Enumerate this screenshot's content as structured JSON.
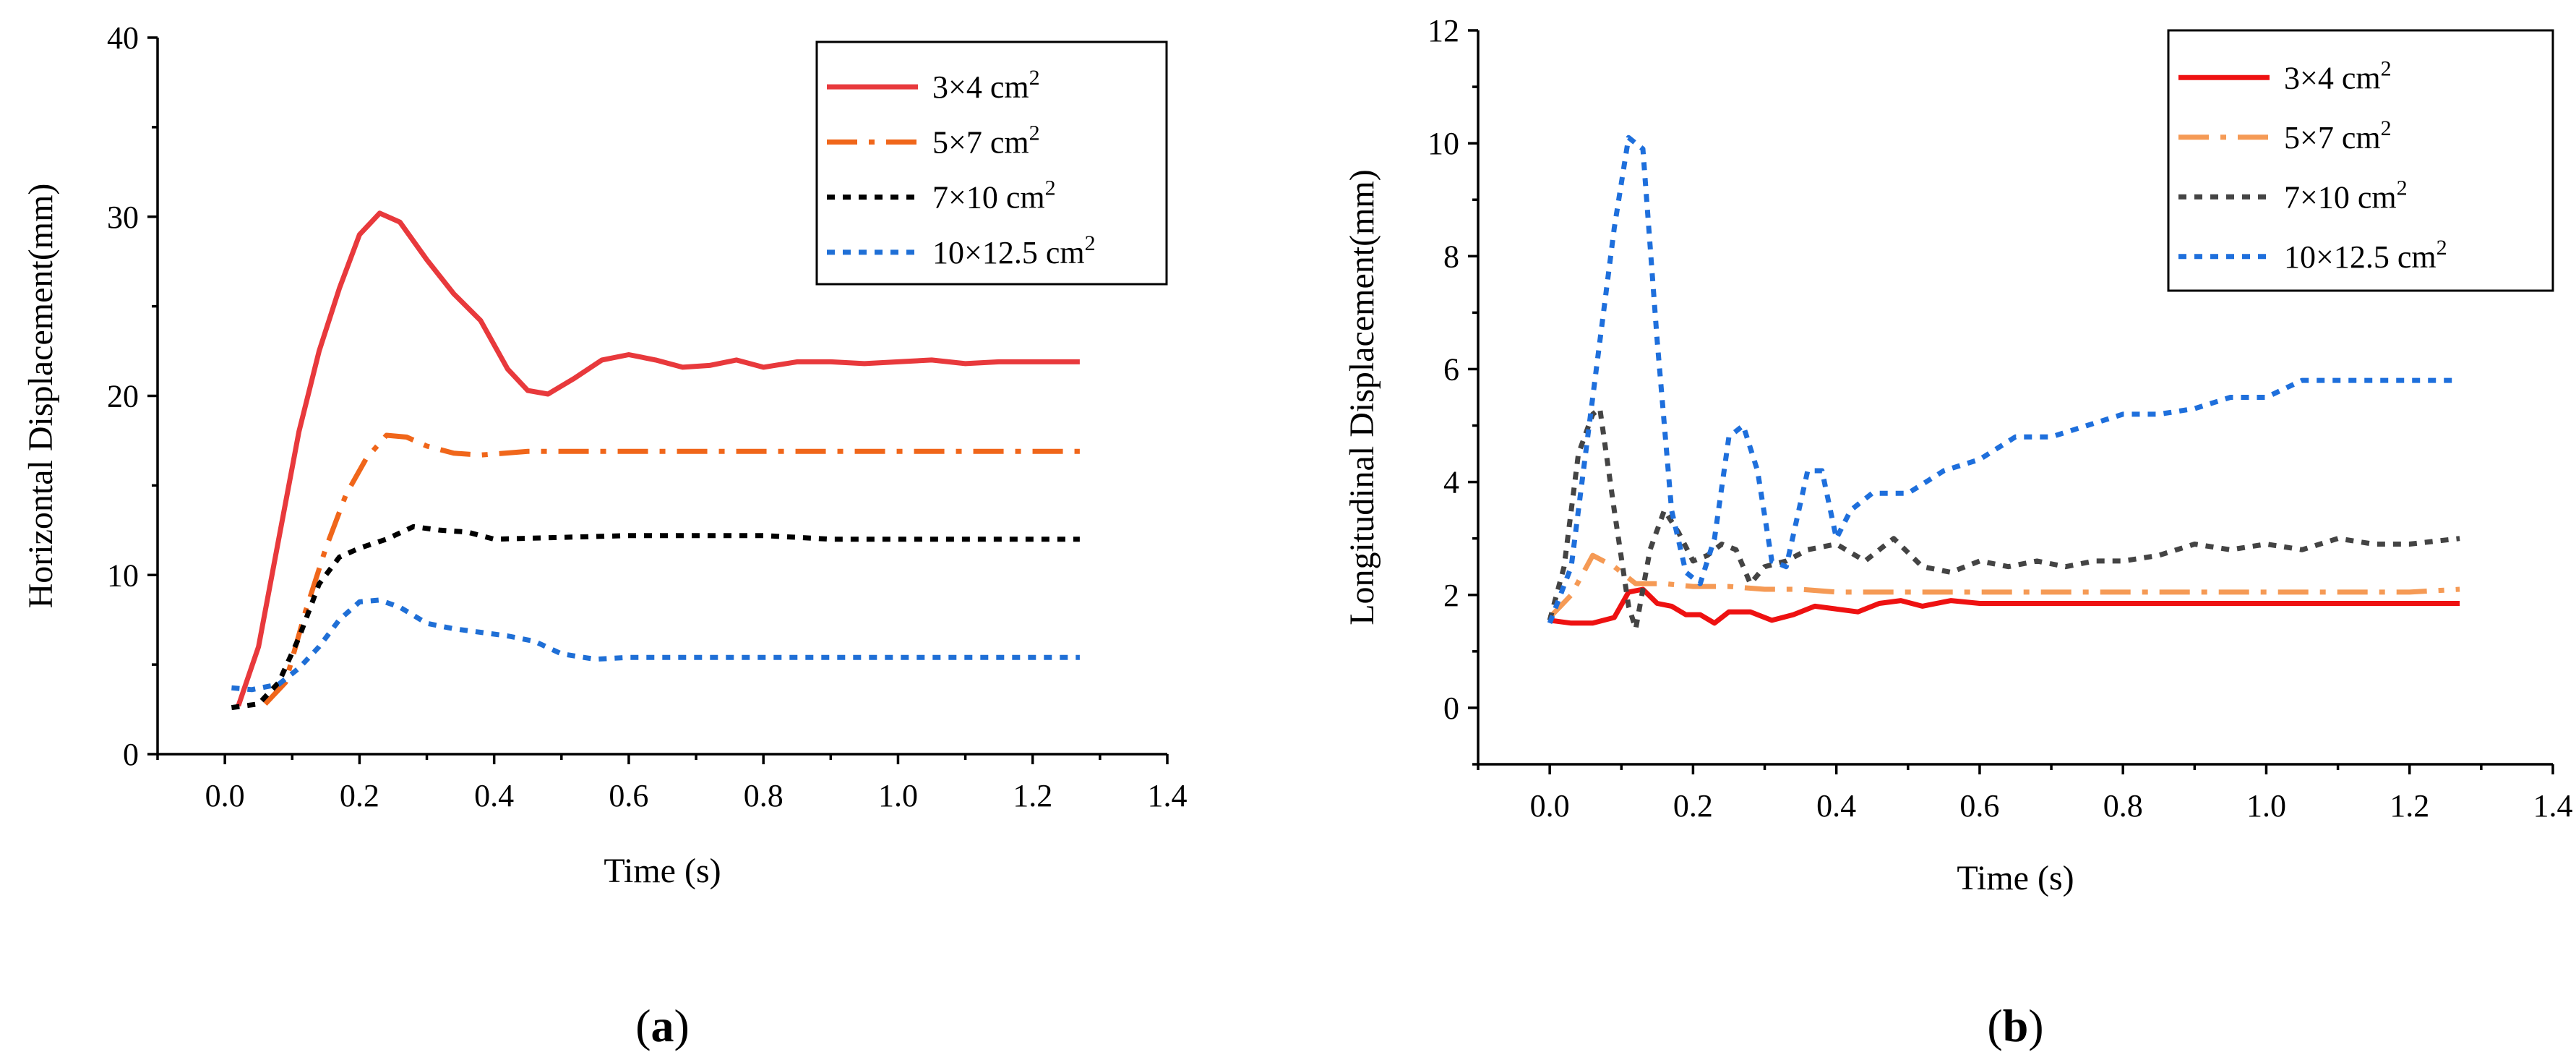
{
  "chart_data": [
    {
      "type": "line",
      "panel_label": "a",
      "xlabel": "Time (s)",
      "ylabel": "Horizontal Displacement(mm)",
      "xlim": [
        -0.1,
        1.4
      ],
      "ylim": [
        0,
        40
      ],
      "xticks": [
        0.0,
        0.2,
        0.4,
        0.6,
        0.8,
        1.0,
        1.2,
        1.4
      ],
      "yticks": [
        0,
        10,
        20,
        30,
        40
      ],
      "grid": false,
      "legend_position": "top-right",
      "series": [
        {
          "name": "3×4 cm",
          "sup": "2",
          "color": "#e8393c",
          "dash": "solid",
          "points": [
            [
              0.02,
              2.7
            ],
            [
              0.05,
              6
            ],
            [
              0.08,
              12
            ],
            [
              0.11,
              18
            ],
            [
              0.14,
              22.5
            ],
            [
              0.17,
              26
            ],
            [
              0.2,
              29
            ],
            [
              0.23,
              30.2
            ],
            [
              0.26,
              29.7
            ],
            [
              0.3,
              27.6
            ],
            [
              0.34,
              25.7
            ],
            [
              0.38,
              24.2
            ],
            [
              0.42,
              21.5
            ],
            [
              0.45,
              20.3
            ],
            [
              0.48,
              20.1
            ],
            [
              0.52,
              21
            ],
            [
              0.56,
              22
            ],
            [
              0.6,
              22.3
            ],
            [
              0.64,
              22
            ],
            [
              0.68,
              21.6
            ],
            [
              0.72,
              21.7
            ],
            [
              0.76,
              22
            ],
            [
              0.8,
              21.6
            ],
            [
              0.85,
              21.9
            ],
            [
              0.9,
              21.9
            ],
            [
              0.95,
              21.8
            ],
            [
              1.0,
              21.9
            ],
            [
              1.05,
              22
            ],
            [
              1.1,
              21.8
            ],
            [
              1.15,
              21.9
            ],
            [
              1.2,
              21.9
            ],
            [
              1.27,
              21.9
            ]
          ]
        },
        {
          "name": "5×7 cm",
          "sup": "2",
          "color": "#f0661a",
          "dash": "dashdot",
          "points": [
            [
              0.06,
              2.8
            ],
            [
              0.09,
              4
            ],
            [
              0.12,
              8
            ],
            [
              0.15,
              11.5
            ],
            [
              0.18,
              14.5
            ],
            [
              0.21,
              16.5
            ],
            [
              0.24,
              17.8
            ],
            [
              0.27,
              17.7
            ],
            [
              0.3,
              17.2
            ],
            [
              0.34,
              16.8
            ],
            [
              0.38,
              16.7
            ],
            [
              0.45,
              16.9
            ],
            [
              0.55,
              16.9
            ],
            [
              0.7,
              16.9
            ],
            [
              0.9,
              16.9
            ],
            [
              1.1,
              16.9
            ],
            [
              1.27,
              16.9
            ]
          ]
        },
        {
          "name": "7×10 cm",
          "sup": "2",
          "color": "#000000",
          "dash": "dot",
          "points": [
            [
              0.01,
              2.6
            ],
            [
              0.05,
              2.8
            ],
            [
              0.08,
              4
            ],
            [
              0.11,
              6.5
            ],
            [
              0.14,
              9.5
            ],
            [
              0.17,
              11
            ],
            [
              0.2,
              11.5
            ],
            [
              0.24,
              12
            ],
            [
              0.28,
              12.7
            ],
            [
              0.32,
              12.5
            ],
            [
              0.36,
              12.4
            ],
            [
              0.4,
              12
            ],
            [
              0.5,
              12.1
            ],
            [
              0.6,
              12.2
            ],
            [
              0.7,
              12.2
            ],
            [
              0.8,
              12.2
            ],
            [
              0.9,
              12
            ],
            [
              1.0,
              12
            ],
            [
              1.1,
              12
            ],
            [
              1.2,
              12
            ],
            [
              1.27,
              12
            ]
          ]
        },
        {
          "name": "10×12.5 cm",
          "sup": "2",
          "color": "#1f6fd6",
          "dash": "dot",
          "points": [
            [
              0.01,
              3.7
            ],
            [
              0.04,
              3.6
            ],
            [
              0.08,
              3.9
            ],
            [
              0.11,
              4.8
            ],
            [
              0.14,
              6
            ],
            [
              0.17,
              7.5
            ],
            [
              0.2,
              8.5
            ],
            [
              0.23,
              8.6
            ],
            [
              0.26,
              8.2
            ],
            [
              0.3,
              7.3
            ],
            [
              0.34,
              7
            ],
            [
              0.38,
              6.8
            ],
            [
              0.42,
              6.6
            ],
            [
              0.46,
              6.3
            ],
            [
              0.5,
              5.6
            ],
            [
              0.55,
              5.3
            ],
            [
              0.6,
              5.4
            ],
            [
              0.7,
              5.4
            ],
            [
              0.8,
              5.4
            ],
            [
              0.9,
              5.4
            ],
            [
              1.0,
              5.4
            ],
            [
              1.1,
              5.4
            ],
            [
              1.2,
              5.4
            ],
            [
              1.27,
              5.4
            ]
          ]
        }
      ]
    },
    {
      "type": "line",
      "panel_label": "b",
      "xlabel": "Time (s)",
      "ylabel": "Longitudinal Displacement(mm)",
      "xlim": [
        -0.1,
        1.4
      ],
      "ylim": [
        -1,
        12
      ],
      "xticks": [
        0.0,
        0.2,
        0.4,
        0.6,
        0.8,
        1.0,
        1.2,
        1.4
      ],
      "yticks": [
        0,
        2,
        4,
        6,
        8,
        10,
        12
      ],
      "grid": false,
      "legend_position": "top-right",
      "series": [
        {
          "name": "3×4 cm",
          "sup": "2",
          "color": "#ee1111",
          "dash": "solid",
          "points": [
            [
              0.0,
              1.55
            ],
            [
              0.03,
              1.5
            ],
            [
              0.06,
              1.5
            ],
            [
              0.09,
              1.6
            ],
            [
              0.11,
              2.05
            ],
            [
              0.13,
              2.1
            ],
            [
              0.15,
              1.85
            ],
            [
              0.17,
              1.8
            ],
            [
              0.19,
              1.65
            ],
            [
              0.21,
              1.65
            ],
            [
              0.23,
              1.5
            ],
            [
              0.25,
              1.7
            ],
            [
              0.28,
              1.7
            ],
            [
              0.31,
              1.55
            ],
            [
              0.34,
              1.65
            ],
            [
              0.37,
              1.8
            ],
            [
              0.4,
              1.75
            ],
            [
              0.43,
              1.7
            ],
            [
              0.46,
              1.85
            ],
            [
              0.49,
              1.9
            ],
            [
              0.52,
              1.8
            ],
            [
              0.56,
              1.9
            ],
            [
              0.6,
              1.85
            ],
            [
              0.65,
              1.85
            ],
            [
              0.7,
              1.85
            ],
            [
              0.8,
              1.85
            ],
            [
              0.9,
              1.85
            ],
            [
              1.0,
              1.85
            ],
            [
              1.1,
              1.85
            ],
            [
              1.2,
              1.85
            ],
            [
              1.27,
              1.85
            ]
          ]
        },
        {
          "name": "5×7 cm",
          "sup": "2",
          "color": "#f59a55",
          "dash": "dashdot",
          "points": [
            [
              0.0,
              1.6
            ],
            [
              0.03,
              2
            ],
            [
              0.06,
              2.7
            ],
            [
              0.09,
              2.5
            ],
            [
              0.12,
              2.2
            ],
            [
              0.16,
              2.2
            ],
            [
              0.2,
              2.15
            ],
            [
              0.25,
              2.15
            ],
            [
              0.3,
              2.1
            ],
            [
              0.35,
              2.1
            ],
            [
              0.4,
              2.05
            ],
            [
              0.5,
              2.05
            ],
            [
              0.6,
              2.05
            ],
            [
              0.7,
              2.05
            ],
            [
              0.8,
              2.05
            ],
            [
              0.9,
              2.05
            ],
            [
              1.0,
              2.05
            ],
            [
              1.1,
              2.05
            ],
            [
              1.2,
              2.05
            ],
            [
              1.27,
              2.1
            ]
          ]
        },
        {
          "name": "7×10 cm",
          "sup": "2",
          "color": "#444444",
          "dash": "dot",
          "points": [
            [
              0.0,
              1.55
            ],
            [
              0.02,
              2.5
            ],
            [
              0.04,
              4.5
            ],
            [
              0.06,
              5.2
            ],
            [
              0.07,
              5.3
            ],
            [
              0.09,
              3.5
            ],
            [
              0.11,
              1.8
            ],
            [
              0.12,
              1.4
            ],
            [
              0.14,
              2.8
            ],
            [
              0.16,
              3.5
            ],
            [
              0.18,
              3.1
            ],
            [
              0.2,
              2.6
            ],
            [
              0.22,
              2.7
            ],
            [
              0.24,
              2.9
            ],
            [
              0.26,
              2.8
            ],
            [
              0.28,
              2.2
            ],
            [
              0.3,
              2.5
            ],
            [
              0.33,
              2.6
            ],
            [
              0.36,
              2.8
            ],
            [
              0.4,
              2.9
            ],
            [
              0.44,
              2.6
            ],
            [
              0.48,
              3
            ],
            [
              0.52,
              2.5
            ],
            [
              0.56,
              2.4
            ],
            [
              0.6,
              2.6
            ],
            [
              0.64,
              2.5
            ],
            [
              0.68,
              2.6
            ],
            [
              0.72,
              2.5
            ],
            [
              0.76,
              2.6
            ],
            [
              0.8,
              2.6
            ],
            [
              0.85,
              2.7
            ],
            [
              0.9,
              2.9
            ],
            [
              0.95,
              2.8
            ],
            [
              1.0,
              2.9
            ],
            [
              1.05,
              2.8
            ],
            [
              1.1,
              3
            ],
            [
              1.15,
              2.9
            ],
            [
              1.2,
              2.9
            ],
            [
              1.27,
              3
            ]
          ]
        },
        {
          "name": "10×12.5 cm",
          "sup": "2",
          "color": "#1e6fdc",
          "dash": "dot",
          "points": [
            [
              0.0,
              1.5
            ],
            [
              0.03,
              2.5
            ],
            [
              0.06,
              5.5
            ],
            [
              0.09,
              8.5
            ],
            [
              0.11,
              10.1
            ],
            [
              0.13,
              9.9
            ],
            [
              0.15,
              6.5
            ],
            [
              0.17,
              3.5
            ],
            [
              0.19,
              2.4
            ],
            [
              0.21,
              2.2
            ],
            [
              0.23,
              3
            ],
            [
              0.25,
              4.8
            ],
            [
              0.27,
              5
            ],
            [
              0.29,
              4.2
            ],
            [
              0.31,
              2.6
            ],
            [
              0.33,
              2.5
            ],
            [
              0.36,
              4.2
            ],
            [
              0.38,
              4.2
            ],
            [
              0.4,
              3
            ],
            [
              0.42,
              3.5
            ],
            [
              0.45,
              3.8
            ],
            [
              0.5,
              3.8
            ],
            [
              0.55,
              4.2
            ],
            [
              0.6,
              4.4
            ],
            [
              0.65,
              4.8
            ],
            [
              0.7,
              4.8
            ],
            [
              0.75,
              5
            ],
            [
              0.8,
              5.2
            ],
            [
              0.85,
              5.2
            ],
            [
              0.9,
              5.3
            ],
            [
              0.95,
              5.5
            ],
            [
              1.0,
              5.5
            ],
            [
              1.05,
              5.8
            ],
            [
              1.1,
              5.8
            ],
            [
              1.2,
              5.8
            ],
            [
              1.27,
              5.8
            ]
          ]
        }
      ]
    }
  ]
}
